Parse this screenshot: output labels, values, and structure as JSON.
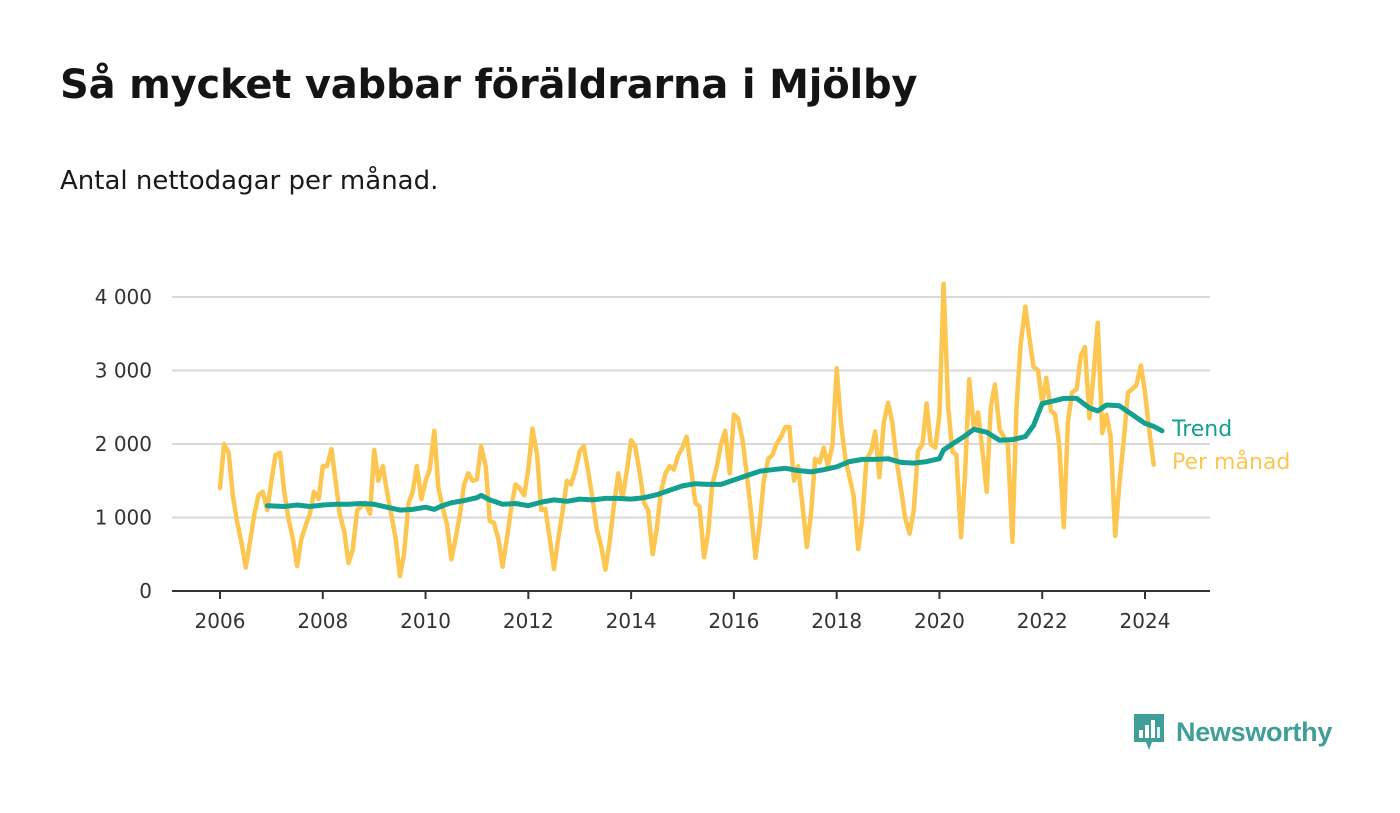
{
  "title": "Så mycket vabbar föräldrarna i Mjölby",
  "subtitle": "Antal nettodagar per månad.",
  "brand": {
    "name": "Newsworthy",
    "icon": "newsworthy-logo-icon",
    "color": "#3f9f98"
  },
  "chart_data": {
    "type": "line",
    "title": "Så mycket vabbar föräldrarna i Mjölby",
    "subtitle": "Antal nettodagar per månad.",
    "xlabel": "",
    "ylabel": "",
    "xlim": [
      2005.1,
      2025.3
    ],
    "ylim": [
      0,
      4200
    ],
    "x_ticks": [
      2006,
      2008,
      2010,
      2012,
      2014,
      2016,
      2018,
      2020,
      2022,
      2024
    ],
    "x_tick_labels": [
      "2006",
      "2008",
      "2010",
      "2012",
      "2014",
      "2016",
      "2018",
      "2020",
      "2022",
      "2024"
    ],
    "y_ticks": [
      0,
      1000,
      2000,
      3000,
      4000
    ],
    "y_tick_labels": [
      "0",
      "1 000",
      "2 000",
      "3 000",
      "4 000"
    ],
    "grid": "horizontal",
    "legend": "inline-right",
    "series": [
      {
        "name": "Per månad",
        "color": "#fcc651",
        "values": [
          [
            2006.0,
            1400
          ],
          [
            2006.08,
            2000
          ],
          [
            2006.17,
            1880
          ],
          [
            2006.25,
            1300
          ],
          [
            2006.33,
            950
          ],
          [
            2006.42,
            650
          ],
          [
            2006.5,
            320
          ],
          [
            2006.58,
            650
          ],
          [
            2006.67,
            1050
          ],
          [
            2006.75,
            1300
          ],
          [
            2006.83,
            1350
          ],
          [
            2006.92,
            1100
          ],
          [
            2007.0,
            1500
          ],
          [
            2007.08,
            1850
          ],
          [
            2007.17,
            1880
          ],
          [
            2007.25,
            1350
          ],
          [
            2007.33,
            1000
          ],
          [
            2007.42,
            700
          ],
          [
            2007.5,
            340
          ],
          [
            2007.58,
            700
          ],
          [
            2007.67,
            900
          ],
          [
            2007.75,
            1050
          ],
          [
            2007.83,
            1350
          ],
          [
            2007.92,
            1250
          ],
          [
            2008.0,
            1700
          ],
          [
            2008.08,
            1700
          ],
          [
            2008.17,
            1930
          ],
          [
            2008.25,
            1500
          ],
          [
            2008.33,
            1050
          ],
          [
            2008.42,
            800
          ],
          [
            2008.5,
            380
          ],
          [
            2008.58,
            550
          ],
          [
            2008.67,
            1100
          ],
          [
            2008.75,
            1150
          ],
          [
            2008.83,
            1200
          ],
          [
            2008.92,
            1050
          ],
          [
            2009.0,
            1920
          ],
          [
            2009.08,
            1500
          ],
          [
            2009.17,
            1700
          ],
          [
            2009.25,
            1350
          ],
          [
            2009.33,
            1050
          ],
          [
            2009.42,
            700
          ],
          [
            2009.5,
            200
          ],
          [
            2009.58,
            500
          ],
          [
            2009.67,
            1200
          ],
          [
            2009.75,
            1350
          ],
          [
            2009.83,
            1700
          ],
          [
            2009.92,
            1250
          ],
          [
            2010.0,
            1500
          ],
          [
            2010.08,
            1650
          ],
          [
            2010.17,
            2180
          ],
          [
            2010.25,
            1400
          ],
          [
            2010.33,
            1150
          ],
          [
            2010.42,
            900
          ],
          [
            2010.5,
            430
          ],
          [
            2010.58,
            700
          ],
          [
            2010.67,
            1050
          ],
          [
            2010.75,
            1450
          ],
          [
            2010.83,
            1600
          ],
          [
            2010.92,
            1500
          ],
          [
            2011.0,
            1520
          ],
          [
            2011.08,
            1970
          ],
          [
            2011.17,
            1700
          ],
          [
            2011.25,
            950
          ],
          [
            2011.33,
            930
          ],
          [
            2011.42,
            700
          ],
          [
            2011.5,
            330
          ],
          [
            2011.58,
            700
          ],
          [
            2011.67,
            1150
          ],
          [
            2011.75,
            1450
          ],
          [
            2011.83,
            1400
          ],
          [
            2011.92,
            1300
          ],
          [
            2012.0,
            1650
          ],
          [
            2012.08,
            2210
          ],
          [
            2012.17,
            1850
          ],
          [
            2012.25,
            1100
          ],
          [
            2012.33,
            1120
          ],
          [
            2012.42,
            700
          ],
          [
            2012.5,
            300
          ],
          [
            2012.58,
            700
          ],
          [
            2012.67,
            1100
          ],
          [
            2012.75,
            1500
          ],
          [
            2012.83,
            1450
          ],
          [
            2012.92,
            1650
          ],
          [
            2013.0,
            1900
          ],
          [
            2013.08,
            1970
          ],
          [
            2013.17,
            1600
          ],
          [
            2013.25,
            1250
          ],
          [
            2013.33,
            850
          ],
          [
            2013.42,
            600
          ],
          [
            2013.5,
            290
          ],
          [
            2013.58,
            650
          ],
          [
            2013.67,
            1200
          ],
          [
            2013.75,
            1600
          ],
          [
            2013.83,
            1250
          ],
          [
            2013.92,
            1650
          ],
          [
            2014.0,
            2050
          ],
          [
            2014.08,
            1970
          ],
          [
            2014.17,
            1600
          ],
          [
            2014.25,
            1200
          ],
          [
            2014.33,
            1100
          ],
          [
            2014.42,
            500
          ],
          [
            2014.5,
            850
          ],
          [
            2014.58,
            1350
          ],
          [
            2014.67,
            1600
          ],
          [
            2014.75,
            1700
          ],
          [
            2014.83,
            1650
          ],
          [
            2014.92,
            1850
          ],
          [
            2015.0,
            1950
          ],
          [
            2015.08,
            2100
          ],
          [
            2015.17,
            1650
          ],
          [
            2015.25,
            1200
          ],
          [
            2015.33,
            1150
          ],
          [
            2015.42,
            460
          ],
          [
            2015.5,
            800
          ],
          [
            2015.58,
            1450
          ],
          [
            2015.67,
            1700
          ],
          [
            2015.75,
            2000
          ],
          [
            2015.83,
            2180
          ],
          [
            2015.92,
            1600
          ],
          [
            2016.0,
            2400
          ],
          [
            2016.08,
            2350
          ],
          [
            2016.17,
            2050
          ],
          [
            2016.25,
            1600
          ],
          [
            2016.33,
            1100
          ],
          [
            2016.42,
            450
          ],
          [
            2016.5,
            900
          ],
          [
            2016.58,
            1500
          ],
          [
            2016.67,
            1800
          ],
          [
            2016.75,
            1850
          ],
          [
            2016.83,
            2000
          ],
          [
            2016.92,
            2100
          ],
          [
            2017.0,
            2230
          ],
          [
            2017.08,
            2230
          ],
          [
            2017.17,
            1500
          ],
          [
            2017.25,
            1700
          ],
          [
            2017.33,
            1200
          ],
          [
            2017.42,
            600
          ],
          [
            2017.5,
            1050
          ],
          [
            2017.58,
            1800
          ],
          [
            2017.67,
            1750
          ],
          [
            2017.75,
            1950
          ],
          [
            2017.83,
            1700
          ],
          [
            2017.92,
            2000
          ],
          [
            2018.0,
            3030
          ],
          [
            2018.08,
            2300
          ],
          [
            2018.17,
            1800
          ],
          [
            2018.25,
            1550
          ],
          [
            2018.33,
            1300
          ],
          [
            2018.42,
            570
          ],
          [
            2018.5,
            1000
          ],
          [
            2018.58,
            1800
          ],
          [
            2018.67,
            1900
          ],
          [
            2018.75,
            2170
          ],
          [
            2018.83,
            1550
          ],
          [
            2018.92,
            2300
          ],
          [
            2019.0,
            2560
          ],
          [
            2019.08,
            2300
          ],
          [
            2019.17,
            1750
          ],
          [
            2019.25,
            1400
          ],
          [
            2019.33,
            1000
          ],
          [
            2019.42,
            780
          ],
          [
            2019.5,
            1100
          ],
          [
            2019.58,
            1900
          ],
          [
            2019.67,
            2000
          ],
          [
            2019.75,
            2550
          ],
          [
            2019.83,
            2000
          ],
          [
            2019.92,
            1950
          ],
          [
            2020.0,
            2400
          ],
          [
            2020.08,
            4180
          ],
          [
            2020.17,
            2500
          ],
          [
            2020.25,
            1900
          ],
          [
            2020.33,
            1850
          ],
          [
            2020.42,
            730
          ],
          [
            2020.5,
            1600
          ],
          [
            2020.58,
            2880
          ],
          [
            2020.67,
            2200
          ],
          [
            2020.75,
            2430
          ],
          [
            2020.83,
            1950
          ],
          [
            2020.92,
            1350
          ],
          [
            2021.0,
            2500
          ],
          [
            2021.08,
            2810
          ],
          [
            2021.17,
            2200
          ],
          [
            2021.25,
            2100
          ],
          [
            2021.33,
            2000
          ],
          [
            2021.42,
            670
          ],
          [
            2021.5,
            2500
          ],
          [
            2021.58,
            3350
          ],
          [
            2021.67,
            3870
          ],
          [
            2021.75,
            3450
          ],
          [
            2021.83,
            3050
          ],
          [
            2021.92,
            3000
          ],
          [
            2022.0,
            2550
          ],
          [
            2022.08,
            2900
          ],
          [
            2022.17,
            2450
          ],
          [
            2022.25,
            2400
          ],
          [
            2022.33,
            2000
          ],
          [
            2022.42,
            870
          ],
          [
            2022.5,
            2300
          ],
          [
            2022.58,
            2700
          ],
          [
            2022.67,
            2750
          ],
          [
            2022.75,
            3200
          ],
          [
            2022.83,
            3320
          ],
          [
            2022.92,
            2350
          ],
          [
            2023.0,
            2950
          ],
          [
            2023.08,
            3650
          ],
          [
            2023.17,
            2150
          ],
          [
            2023.25,
            2400
          ],
          [
            2023.33,
            2100
          ],
          [
            2023.42,
            750
          ],
          [
            2023.5,
            1450
          ],
          [
            2023.58,
            2000
          ],
          [
            2023.67,
            2700
          ],
          [
            2023.75,
            2750
          ],
          [
            2023.83,
            2800
          ],
          [
            2023.92,
            3070
          ],
          [
            2024.0,
            2700
          ],
          [
            2024.08,
            2200
          ],
          [
            2024.17,
            1720
          ]
        ]
      },
      {
        "name": "Trend",
        "color": "#13a091",
        "values": [
          [
            2006.92,
            1160
          ],
          [
            2007.25,
            1150
          ],
          [
            2007.5,
            1170
          ],
          [
            2007.75,
            1150
          ],
          [
            2008.0,
            1170
          ],
          [
            2008.25,
            1180
          ],
          [
            2008.5,
            1180
          ],
          [
            2008.75,
            1190
          ],
          [
            2009.0,
            1180
          ],
          [
            2009.25,
            1140
          ],
          [
            2009.5,
            1100
          ],
          [
            2009.75,
            1110
          ],
          [
            2010.0,
            1140
          ],
          [
            2010.17,
            1110
          ],
          [
            2010.33,
            1160
          ],
          [
            2010.5,
            1200
          ],
          [
            2010.75,
            1230
          ],
          [
            2011.0,
            1270
          ],
          [
            2011.08,
            1300
          ],
          [
            2011.25,
            1240
          ],
          [
            2011.5,
            1180
          ],
          [
            2011.75,
            1190
          ],
          [
            2012.0,
            1160
          ],
          [
            2012.25,
            1210
          ],
          [
            2012.5,
            1240
          ],
          [
            2012.75,
            1220
          ],
          [
            2013.0,
            1250
          ],
          [
            2013.25,
            1240
          ],
          [
            2013.5,
            1260
          ],
          [
            2013.75,
            1260
          ],
          [
            2014.0,
            1250
          ],
          [
            2014.25,
            1270
          ],
          [
            2014.5,
            1310
          ],
          [
            2014.75,
            1370
          ],
          [
            2015.0,
            1430
          ],
          [
            2015.25,
            1460
          ],
          [
            2015.5,
            1450
          ],
          [
            2015.75,
            1450
          ],
          [
            2016.0,
            1510
          ],
          [
            2016.25,
            1570
          ],
          [
            2016.5,
            1630
          ],
          [
            2016.75,
            1650
          ],
          [
            2017.0,
            1670
          ],
          [
            2017.25,
            1640
          ],
          [
            2017.5,
            1620
          ],
          [
            2017.75,
            1650
          ],
          [
            2018.0,
            1690
          ],
          [
            2018.25,
            1760
          ],
          [
            2018.5,
            1790
          ],
          [
            2018.75,
            1790
          ],
          [
            2019.0,
            1800
          ],
          [
            2019.25,
            1750
          ],
          [
            2019.5,
            1740
          ],
          [
            2019.75,
            1760
          ],
          [
            2020.0,
            1800
          ],
          [
            2020.08,
            1920
          ],
          [
            2020.25,
            2000
          ],
          [
            2020.5,
            2110
          ],
          [
            2020.67,
            2200
          ],
          [
            2020.92,
            2160
          ],
          [
            2021.17,
            2050
          ],
          [
            2021.42,
            2060
          ],
          [
            2021.67,
            2100
          ],
          [
            2021.83,
            2250
          ],
          [
            2022.0,
            2550
          ],
          [
            2022.25,
            2590
          ],
          [
            2022.42,
            2620
          ],
          [
            2022.67,
            2620
          ],
          [
            2022.92,
            2490
          ],
          [
            2023.08,
            2450
          ],
          [
            2023.25,
            2530
          ],
          [
            2023.5,
            2520
          ],
          [
            2023.75,
            2400
          ],
          [
            2024.0,
            2280
          ],
          [
            2024.17,
            2240
          ],
          [
            2024.33,
            2180
          ]
        ]
      }
    ]
  }
}
